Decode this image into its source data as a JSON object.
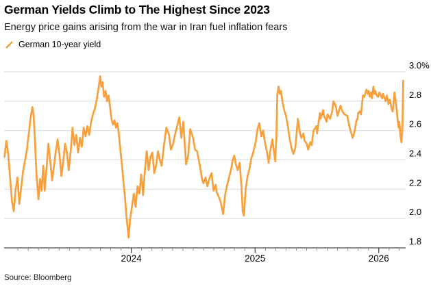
{
  "header": {
    "title": "German Yields Climb to The Highest Since 2023",
    "subtitle": "Energy price gains arising from the war in Iran fuel inflation fears"
  },
  "legend": {
    "items": [
      {
        "label": "German 10-year yield",
        "marker": "slash-icon",
        "color": "#F7A03C"
      }
    ]
  },
  "source_note": "Source: Bloomberg",
  "chart_data": {
    "type": "line",
    "title": "German Yields Climb to The Highest Since 2023",
    "subtitle": "Energy price gains arising from the war in Iran fuel inflation fears",
    "legend_position": "top-left",
    "grid": "horizontal",
    "unit": "percent yield",
    "x_axis": {
      "range": [
        2022.972,
        2026.217
      ],
      "major_ticks": [
        {
          "label": "2024",
          "value": 2024
        },
        {
          "label": "2025",
          "value": 2025
        },
        {
          "label": "2026",
          "value": 2026
        }
      ],
      "minor_tick_step_years": 0.083333
    },
    "y_axis": {
      "side": "right",
      "range": [
        1.8,
        3.0
      ],
      "ticks": [
        {
          "label": "3.0%",
          "value": 3.0
        },
        {
          "label": "2.8",
          "value": 2.8
        },
        {
          "label": "2.6",
          "value": 2.6
        },
        {
          "label": "2.4",
          "value": 2.4
        },
        {
          "label": "2.2",
          "value": 2.2
        },
        {
          "label": "2.0",
          "value": 2.0
        },
        {
          "label": "1.8",
          "value": 1.8
        }
      ]
    },
    "colors": {
      "line": "#F7A03C",
      "grid": "#D9D9D9",
      "axis": "#1A1A1A",
      "minor_tick": "#8C8C8C",
      "text": "#000000"
    },
    "series": [
      {
        "name": "German 10-year yield",
        "color": "#F7A03C",
        "points": [
          [
            2022.975,
            2.42
          ],
          [
            2022.99,
            2.53
          ],
          [
            2023.005,
            2.44
          ],
          [
            2023.02,
            2.28
          ],
          [
            2023.035,
            2.12
          ],
          [
            2023.05,
            2.05
          ],
          [
            2023.065,
            2.2
          ],
          [
            2023.08,
            2.28
          ],
          [
            2023.095,
            2.1
          ],
          [
            2023.11,
            2.21
          ],
          [
            2023.125,
            2.32
          ],
          [
            2023.14,
            2.39
          ],
          [
            2023.155,
            2.46
          ],
          [
            2023.17,
            2.57
          ],
          [
            2023.185,
            2.68
          ],
          [
            2023.2,
            2.76
          ],
          [
            2023.21,
            2.71
          ],
          [
            2023.22,
            2.55
          ],
          [
            2023.235,
            2.28
          ],
          [
            2023.25,
            2.13
          ],
          [
            2023.262,
            2.27
          ],
          [
            2023.275,
            2.19
          ],
          [
            2023.288,
            2.36
          ],
          [
            2023.3,
            2.19
          ],
          [
            2023.315,
            2.34
          ],
          [
            2023.33,
            2.51
          ],
          [
            2023.345,
            2.39
          ],
          [
            2023.36,
            2.26
          ],
          [
            2023.375,
            2.36
          ],
          [
            2023.39,
            2.46
          ],
          [
            2023.405,
            2.54
          ],
          [
            2023.42,
            2.43
          ],
          [
            2023.435,
            2.29
          ],
          [
            2023.45,
            2.39
          ],
          [
            2023.465,
            2.51
          ],
          [
            2023.48,
            2.45
          ],
          [
            2023.495,
            2.33
          ],
          [
            2023.51,
            2.46
          ],
          [
            2023.525,
            2.62
          ],
          [
            2023.54,
            2.5
          ],
          [
            2023.555,
            2.57
          ],
          [
            2023.57,
            2.45
          ],
          [
            2023.585,
            2.55
          ],
          [
            2023.6,
            2.49
          ],
          [
            2023.615,
            2.62
          ],
          [
            2023.63,
            2.56
          ],
          [
            2023.645,
            2.63
          ],
          [
            2023.66,
            2.57
          ],
          [
            2023.675,
            2.66
          ],
          [
            2023.69,
            2.71
          ],
          [
            2023.705,
            2.75
          ],
          [
            2023.72,
            2.81
          ],
          [
            2023.735,
            2.89
          ],
          [
            2023.748,
            2.97
          ],
          [
            2023.758,
            2.9
          ],
          [
            2023.768,
            2.93
          ],
          [
            2023.78,
            2.83
          ],
          [
            2023.792,
            2.87
          ],
          [
            2023.804,
            2.8
          ],
          [
            2023.816,
            2.84
          ],
          [
            2023.828,
            2.76
          ],
          [
            2023.84,
            2.68
          ],
          [
            2023.852,
            2.64
          ],
          [
            2023.864,
            2.67
          ],
          [
            2023.876,
            2.62
          ],
          [
            2023.888,
            2.65
          ],
          [
            2023.9,
            2.57
          ],
          [
            2023.912,
            2.46
          ],
          [
            2023.924,
            2.37
          ],
          [
            2023.936,
            2.25
          ],
          [
            2023.948,
            2.15
          ],
          [
            2023.96,
            2.02
          ],
          [
            2023.97,
            1.94
          ],
          [
            2023.978,
            1.87
          ],
          [
            2023.99,
            1.99
          ],
          [
            2024.005,
            2.08
          ],
          [
            2024.02,
            2.17
          ],
          [
            2024.035,
            2.08
          ],
          [
            2024.05,
            2.22
          ],
          [
            2024.065,
            2.17
          ],
          [
            2024.08,
            2.3
          ],
          [
            2024.095,
            2.16
          ],
          [
            2024.11,
            2.33
          ],
          [
            2024.125,
            2.46
          ],
          [
            2024.14,
            2.33
          ],
          [
            2024.155,
            2.42
          ],
          [
            2024.17,
            2.45
          ],
          [
            2024.185,
            2.31
          ],
          [
            2024.2,
            2.36
          ],
          [
            2024.215,
            2.46
          ],
          [
            2024.23,
            2.4
          ],
          [
            2024.245,
            2.36
          ],
          [
            2024.26,
            2.47
          ],
          [
            2024.283,
            2.62
          ],
          [
            2024.305,
            2.57
          ],
          [
            2024.32,
            2.47
          ],
          [
            2024.338,
            2.51
          ],
          [
            2024.355,
            2.58
          ],
          [
            2024.37,
            2.63
          ],
          [
            2024.388,
            2.69
          ],
          [
            2024.404,
            2.55
          ],
          [
            2024.42,
            2.66
          ],
          [
            2024.443,
            2.37
          ],
          [
            2024.46,
            2.43
          ],
          [
            2024.476,
            2.61
          ],
          [
            2024.499,
            2.55
          ],
          [
            2024.515,
            2.47
          ],
          [
            2024.532,
            2.46
          ],
          [
            2024.543,
            2.41
          ],
          [
            2024.56,
            2.33
          ],
          [
            2024.571,
            2.27
          ],
          [
            2024.582,
            2.24
          ],
          [
            2024.6,
            2.28
          ],
          [
            2024.615,
            2.22
          ],
          [
            2024.63,
            2.27
          ],
          [
            2024.648,
            2.31
          ],
          [
            2024.665,
            2.19
          ],
          [
            2024.682,
            2.23
          ],
          [
            2024.69,
            2.18
          ],
          [
            2024.705,
            2.15
          ],
          [
            2024.72,
            2.12
          ],
          [
            2024.733,
            2.07
          ],
          [
            2024.742,
            2.03
          ],
          [
            2024.758,
            2.16
          ],
          [
            2024.775,
            2.23
          ],
          [
            2024.79,
            2.28
          ],
          [
            2024.805,
            2.33
          ],
          [
            2024.82,
            2.4
          ],
          [
            2024.832,
            2.43
          ],
          [
            2024.845,
            2.37
          ],
          [
            2024.86,
            2.33
          ],
          [
            2024.875,
            2.38
          ],
          [
            2024.89,
            2.22
          ],
          [
            2024.9,
            2.05
          ],
          [
            2024.91,
            2.02
          ],
          [
            2024.925,
            2.21
          ],
          [
            2024.94,
            2.29
          ],
          [
            2024.955,
            2.34
          ],
          [
            2024.97,
            2.41
          ],
          [
            2024.985,
            2.45
          ],
          [
            2025.005,
            2.52
          ],
          [
            2025.02,
            2.61
          ],
          [
            2025.035,
            2.65
          ],
          [
            2025.05,
            2.56
          ],
          [
            2025.065,
            2.6
          ],
          [
            2025.08,
            2.52
          ],
          [
            2025.095,
            2.46
          ],
          [
            2025.11,
            2.38
          ],
          [
            2025.125,
            2.47
          ],
          [
            2025.14,
            2.54
          ],
          [
            2025.152,
            2.46
          ],
          [
            2025.163,
            2.39
          ],
          [
            2025.172,
            2.55
          ],
          [
            2025.18,
            2.84
          ],
          [
            2025.19,
            2.9
          ],
          [
            2025.2,
            2.85
          ],
          [
            2025.21,
            2.87
          ],
          [
            2025.22,
            2.8
          ],
          [
            2025.235,
            2.74
          ],
          [
            2025.25,
            2.7
          ],
          [
            2025.265,
            2.63
          ],
          [
            2025.28,
            2.54
          ],
          [
            2025.295,
            2.48
          ],
          [
            2025.31,
            2.44
          ],
          [
            2025.325,
            2.48
          ],
          [
            2025.335,
            2.57
          ],
          [
            2025.346,
            2.68
          ],
          [
            2025.363,
            2.58
          ],
          [
            2025.374,
            2.55
          ],
          [
            2025.39,
            2.58
          ],
          [
            2025.4,
            2.53
          ],
          [
            2025.418,
            2.51
          ],
          [
            2025.429,
            2.47
          ],
          [
            2025.446,
            2.52
          ],
          [
            2025.457,
            2.5
          ],
          [
            2025.473,
            2.6
          ],
          [
            2025.496,
            2.63
          ],
          [
            2025.501,
            2.58
          ],
          [
            2025.524,
            2.72
          ],
          [
            2025.529,
            2.68
          ],
          [
            2025.551,
            2.74
          ],
          [
            2025.557,
            2.7
          ],
          [
            2025.579,
            2.66
          ],
          [
            2025.585,
            2.71
          ],
          [
            2025.607,
            2.68
          ],
          [
            2025.623,
            2.73
          ],
          [
            2025.634,
            2.8
          ],
          [
            2025.651,
            2.77
          ],
          [
            2025.667,
            2.7
          ],
          [
            2025.69,
            2.77
          ],
          [
            2025.706,
            2.73
          ],
          [
            2025.723,
            2.71
          ],
          [
            2025.745,
            2.7
          ],
          [
            2025.762,
            2.63
          ],
          [
            2025.778,
            2.58
          ],
          [
            2025.789,
            2.55
          ],
          [
            2025.8,
            2.58
          ],
          [
            2025.806,
            2.6
          ],
          [
            2025.817,
            2.66
          ],
          [
            2025.828,
            2.68
          ],
          [
            2025.834,
            2.72
          ],
          [
            2025.845,
            2.73
          ],
          [
            2025.856,
            2.71
          ],
          [
            2025.872,
            2.84
          ],
          [
            2025.883,
            2.83
          ],
          [
            2025.9,
            2.88
          ],
          [
            2025.911,
            2.85
          ],
          [
            2025.917,
            2.87
          ],
          [
            2025.928,
            2.83
          ],
          [
            2025.939,
            2.86
          ],
          [
            2025.945,
            2.82
          ],
          [
            2025.956,
            2.9
          ],
          [
            2025.967,
            2.85
          ],
          [
            2025.972,
            2.87
          ],
          [
            2025.983,
            2.84
          ],
          [
            2025.994,
            2.83
          ],
          [
            2026.005,
            2.86
          ],
          [
            2026.016,
            2.84
          ],
          [
            2026.027,
            2.82
          ],
          [
            2026.033,
            2.85
          ],
          [
            2026.044,
            2.83
          ],
          [
            2026.055,
            2.8
          ],
          [
            2026.066,
            2.84
          ],
          [
            2026.078,
            2.78
          ],
          [
            2026.09,
            2.81
          ],
          [
            2026.1,
            2.76
          ],
          [
            2026.111,
            2.73
          ],
          [
            2026.119,
            2.78
          ],
          [
            2026.127,
            2.86
          ],
          [
            2026.136,
            2.8
          ],
          [
            2026.145,
            2.74
          ],
          [
            2026.153,
            2.67
          ],
          [
            2026.16,
            2.62
          ],
          [
            2026.166,
            2.66
          ],
          [
            2026.174,
            2.57
          ],
          [
            2026.183,
            2.52
          ],
          [
            2026.19,
            2.6
          ],
          [
            2026.194,
            2.75
          ],
          [
            2026.197,
            2.94
          ]
        ]
      }
    ]
  }
}
